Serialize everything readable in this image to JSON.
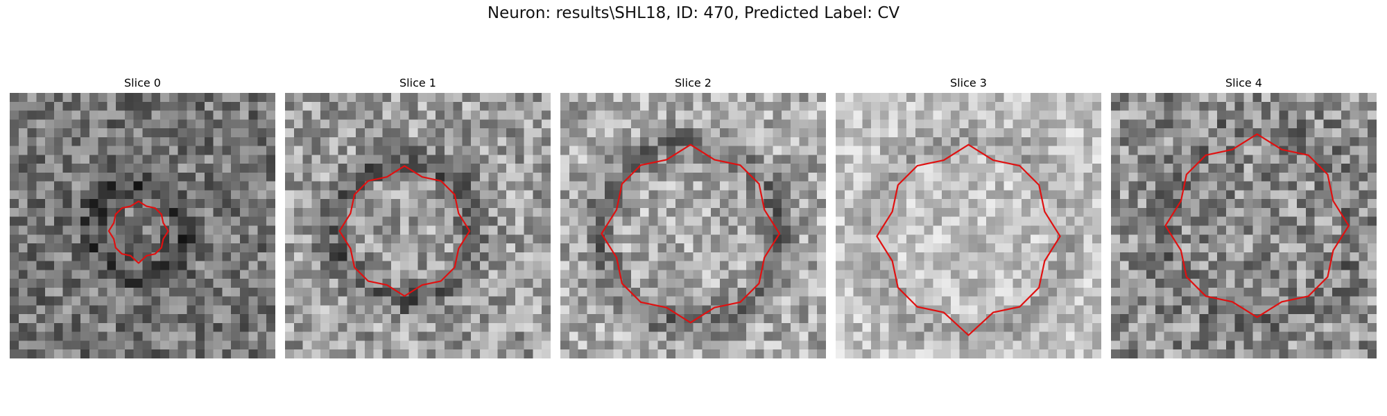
{
  "figure": {
    "title": "Neuron: results\\SHL18, ID: 470, Predicted Label: CV"
  },
  "panels": [
    {
      "title": "Slice 0",
      "image": {
        "grid": 30,
        "base_gray": 0.47,
        "noise": 0.28,
        "ring_dark": 0.18,
        "ring_radius": 0.17,
        "seed": 101
      },
      "outline": {
        "color": "#e01010",
        "center": [
          0.485,
          0.52
        ],
        "radius": 0.112,
        "notch": true
      }
    },
    {
      "title": "Slice 1",
      "image": {
        "grid": 30,
        "base_gray": 0.62,
        "noise": 0.3,
        "ring_dark": 0.22,
        "ring_radius": 0.26,
        "seed": 202
      },
      "outline": {
        "color": "#e01010",
        "center": [
          0.45,
          0.52
        ],
        "radius": 0.245,
        "notch": false
      }
    },
    {
      "title": "Slice 2",
      "image": {
        "grid": 30,
        "base_gray": 0.67,
        "noise": 0.28,
        "ring_dark": 0.22,
        "ring_radius": 0.34,
        "seed": 303
      },
      "outline": {
        "color": "#e01010",
        "center": [
          0.49,
          0.53
        ],
        "radius": 0.335,
        "notch": false
      }
    },
    {
      "title": "Slice 3",
      "image": {
        "grid": 30,
        "base_gray": 0.76,
        "noise": 0.22,
        "ring_dark": 0.12,
        "ring_radius": 0.38,
        "seed": 404
      },
      "outline": {
        "color": "#e01010",
        "center": [
          0.5,
          0.54
        ],
        "radius": 0.345,
        "notch": true
      }
    },
    {
      "title": "Slice 4",
      "image": {
        "grid": 30,
        "base_gray": 0.56,
        "noise": 0.32,
        "ring_dark": 0.08,
        "ring_radius": 0.36,
        "seed": 505
      },
      "outline": {
        "color": "#e01010",
        "center": [
          0.55,
          0.5
        ],
        "radius": 0.345,
        "notch": false
      }
    }
  ]
}
